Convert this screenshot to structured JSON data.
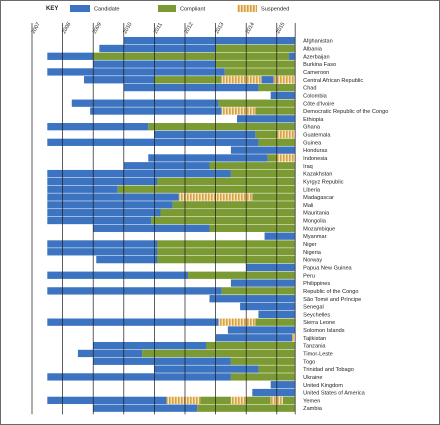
{
  "chart_data": {
    "type": "bar",
    "layout": "horizontal-timeline",
    "legend": {
      "title": "KEY",
      "position": "top-left",
      "items": [
        {
          "label": "Candidate",
          "color": "#3d74c1"
        },
        {
          "label": "Compliant",
          "color": "#7c9a33"
        },
        {
          "label": "Suspended",
          "color": "#d9a23a"
        }
      ]
    },
    "x_ticks": [
      "2007",
      "2008",
      "2009",
      "2010",
      "2011",
      "2012",
      "2013",
      "2014",
      "2015"
    ],
    "xlim": [
      2007,
      2015.6
    ],
    "grid": true,
    "rows": [
      {
        "country": "Afghanistan",
        "segments": [
          [
            2010,
            2015.6,
            "candidate"
          ]
        ]
      },
      {
        "country": "Albania",
        "segments": [
          [
            2009.2,
            2013,
            "candidate"
          ],
          [
            2013,
            2015.6,
            "compliant"
          ]
        ]
      },
      {
        "country": "Azerbaijan",
        "segments": [
          [
            2007.5,
            2009,
            "candidate"
          ],
          [
            2009,
            2015.4,
            "compliant"
          ],
          [
            2015.4,
            2015.6,
            "candidate"
          ]
        ]
      },
      {
        "country": "Burkina Faso",
        "segments": [
          [
            2009,
            2013,
            "candidate"
          ],
          [
            2013,
            2015.6,
            "compliant"
          ]
        ]
      },
      {
        "country": "Cameroon",
        "segments": [
          [
            2007.5,
            2013.3,
            "candidate"
          ],
          [
            2013.3,
            2015.6,
            "compliant"
          ]
        ]
      },
      {
        "country": "Central African Republic",
        "segments": [
          [
            2008.7,
            2011,
            "candidate"
          ],
          [
            2011,
            2013.2,
            "compliant"
          ],
          [
            2013.2,
            2014.5,
            "suspended"
          ],
          [
            2014.5,
            2014.9,
            "candidate"
          ],
          [
            2014.9,
            2015.6,
            "suspended"
          ]
        ]
      },
      {
        "country": "Chad",
        "segments": [
          [
            2010,
            2014.4,
            "candidate"
          ],
          [
            2014.4,
            2015.6,
            "compliant"
          ]
        ]
      },
      {
        "country": "Colombia",
        "segments": [
          [
            2014.8,
            2015.6,
            "candidate"
          ]
        ]
      },
      {
        "country": "Côte d'Ivoire",
        "segments": [
          [
            2008.3,
            2013.1,
            "candidate"
          ],
          [
            2013.1,
            2015.6,
            "compliant"
          ]
        ]
      },
      {
        "country": "Democratic Republic of the Congo",
        "segments": [
          [
            2008.9,
            2013.2,
            "candidate"
          ],
          [
            2013.2,
            2014.3,
            "suspended"
          ],
          [
            2014.3,
            2015.6,
            "compliant"
          ]
        ]
      },
      {
        "country": "Ethiopia",
        "segments": [
          [
            2013.7,
            2015.6,
            "candidate"
          ]
        ]
      },
      {
        "country": "Ghana",
        "segments": [
          [
            2007.5,
            2010.8,
            "candidate"
          ],
          [
            2010.8,
            2015.6,
            "compliant"
          ]
        ]
      },
      {
        "country": "Guatemala",
        "segments": [
          [
            2011,
            2014.3,
            "candidate"
          ],
          [
            2014.3,
            2015,
            "compliant"
          ],
          [
            2015,
            2015.6,
            "suspended"
          ]
        ]
      },
      {
        "country": "Guinea",
        "segments": [
          [
            2007.5,
            2014.4,
            "candidate"
          ],
          [
            2014.4,
            2015.6,
            "compliant"
          ]
        ]
      },
      {
        "country": "Honduras",
        "segments": [
          [
            2013.5,
            2015.6,
            "candidate"
          ]
        ]
      },
      {
        "country": "Indonesia",
        "segments": [
          [
            2010.8,
            2014.7,
            "candidate"
          ],
          [
            2014.7,
            2015,
            "compliant"
          ],
          [
            2015,
            2015.6,
            "suspended"
          ]
        ]
      },
      {
        "country": "Iraq",
        "segments": [
          [
            2010,
            2012.8,
            "candidate"
          ],
          [
            2012.8,
            2015.6,
            "compliant"
          ]
        ]
      },
      {
        "country": "Kazakhstan",
        "segments": [
          [
            2007.5,
            2013.5,
            "candidate"
          ],
          [
            2013.5,
            2015.6,
            "compliant"
          ]
        ]
      },
      {
        "country": "Kyrgyz Republic",
        "segments": [
          [
            2007.5,
            2011.1,
            "candidate"
          ],
          [
            2011.1,
            2015.6,
            "compliant"
          ]
        ]
      },
      {
        "country": "Liberia",
        "segments": [
          [
            2007.5,
            2009.8,
            "candidate"
          ],
          [
            2009.8,
            2015.6,
            "compliant"
          ]
        ]
      },
      {
        "country": "Madagascar",
        "segments": [
          [
            2007.5,
            2011.8,
            "candidate"
          ],
          [
            2011.8,
            2014.2,
            "suspended"
          ],
          [
            2014.2,
            2015.6,
            "compliant"
          ]
        ]
      },
      {
        "country": "Mali",
        "segments": [
          [
            2007.5,
            2011.6,
            "candidate"
          ],
          [
            2011.6,
            2015.6,
            "compliant"
          ]
        ]
      },
      {
        "country": "Mauritania",
        "segments": [
          [
            2007.5,
            2011.2,
            "candidate"
          ],
          [
            2011.2,
            2015.6,
            "compliant"
          ]
        ]
      },
      {
        "country": "Mongolia",
        "segments": [
          [
            2007.5,
            2010.9,
            "candidate"
          ],
          [
            2010.9,
            2015.6,
            "compliant"
          ]
        ]
      },
      {
        "country": "Mozambique",
        "segments": [
          [
            2009,
            2012.8,
            "candidate"
          ],
          [
            2012.8,
            2015.6,
            "compliant"
          ]
        ]
      },
      {
        "country": "Myanmar",
        "segments": [
          [
            2014.6,
            2015.6,
            "candidate"
          ]
        ]
      },
      {
        "country": "Niger",
        "segments": [
          [
            2007.5,
            2011.1,
            "candidate"
          ],
          [
            2011.1,
            2015.6,
            "compliant"
          ]
        ]
      },
      {
        "country": "Nigeria",
        "segments": [
          [
            2007.5,
            2011.1,
            "candidate"
          ],
          [
            2011.1,
            2015.6,
            "compliant"
          ]
        ]
      },
      {
        "country": "Norway",
        "segments": [
          [
            2009.1,
            2011.1,
            "candidate"
          ],
          [
            2011.1,
            2015.6,
            "compliant"
          ]
        ]
      },
      {
        "country": "Papua New Guinea",
        "segments": [
          [
            2014,
            2015.6,
            "candidate"
          ]
        ]
      },
      {
        "country": "Peru",
        "segments": [
          [
            2007.5,
            2012.1,
            "candidate"
          ],
          [
            2012.1,
            2015.6,
            "compliant"
          ]
        ]
      },
      {
        "country": "Philippines",
        "segments": [
          [
            2013.5,
            2015.6,
            "candidate"
          ]
        ]
      },
      {
        "country": "Republic of the Congo",
        "segments": [
          [
            2007.5,
            2013.2,
            "candidate"
          ],
          [
            2013.2,
            2015.6,
            "compliant"
          ]
        ]
      },
      {
        "country": "São Tomé and Príncipe",
        "segments": [
          [
            2012.8,
            2015.6,
            "candidate"
          ]
        ]
      },
      {
        "country": "Senegal",
        "segments": [
          [
            2013.8,
            2015.6,
            "candidate"
          ]
        ]
      },
      {
        "country": "Seychelles",
        "segments": [
          [
            2014.4,
            2015.6,
            "candidate"
          ]
        ]
      },
      {
        "country": "Sierra Leone",
        "segments": [
          [
            2007.5,
            2013.1,
            "candidate"
          ],
          [
            2013.1,
            2014.3,
            "suspended"
          ],
          [
            2014.3,
            2015.6,
            "compliant"
          ]
        ]
      },
      {
        "country": "Solomon Islands",
        "segments": [
          [
            2013.4,
            2015.6,
            "candidate"
          ]
        ]
      },
      {
        "country": "Tajikistan",
        "segments": [
          [
            2013,
            2015.5,
            "candidate"
          ],
          [
            2015.5,
            2015.6,
            "suspended"
          ]
        ]
      },
      {
        "country": "Tanzania",
        "segments": [
          [
            2009,
            2012.7,
            "candidate"
          ],
          [
            2012.7,
            2015.6,
            "compliant"
          ]
        ]
      },
      {
        "country": "Timor-Leste",
        "segments": [
          [
            2008.5,
            2010.6,
            "candidate"
          ],
          [
            2010.6,
            2015.6,
            "compliant"
          ]
        ]
      },
      {
        "country": "Togo",
        "segments": [
          [
            2009,
            2013.5,
            "candidate"
          ],
          [
            2013.5,
            2015.6,
            "compliant"
          ]
        ]
      },
      {
        "country": "Trinidad and Tobago",
        "segments": [
          [
            2011,
            2014.4,
            "candidate"
          ],
          [
            2014.4,
            2015.6,
            "compliant"
          ]
        ]
      },
      {
        "country": "Ukraine",
        "segments": [
          [
            2007.5,
            2013.5,
            "candidate"
          ],
          [
            2013.5,
            2015.6,
            "compliant"
          ]
        ]
      },
      {
        "country": "United Kingdom",
        "segments": [
          [
            2014.8,
            2015.6,
            "candidate"
          ]
        ]
      },
      {
        "country": "United States of America",
        "segments": [
          [
            2014.2,
            2015.6,
            "candidate"
          ]
        ]
      },
      {
        "country": "Yemen",
        "segments": [
          [
            2007.5,
            2011.4,
            "candidate"
          ],
          [
            2011.4,
            2012.5,
            "suspended"
          ],
          [
            2012.5,
            2013.5,
            "compliant"
          ],
          [
            2013.5,
            2014,
            "suspended"
          ],
          [
            2014,
            2014.8,
            "compliant"
          ],
          [
            2014.8,
            2015.2,
            "suspended"
          ],
          [
            2015.2,
            2015.6,
            "compliant"
          ]
        ]
      },
      {
        "country": "Zambia",
        "segments": [
          [
            2009,
            2012.4,
            "candidate"
          ],
          [
            2012.4,
            2015.6,
            "compliant"
          ]
        ]
      }
    ]
  }
}
